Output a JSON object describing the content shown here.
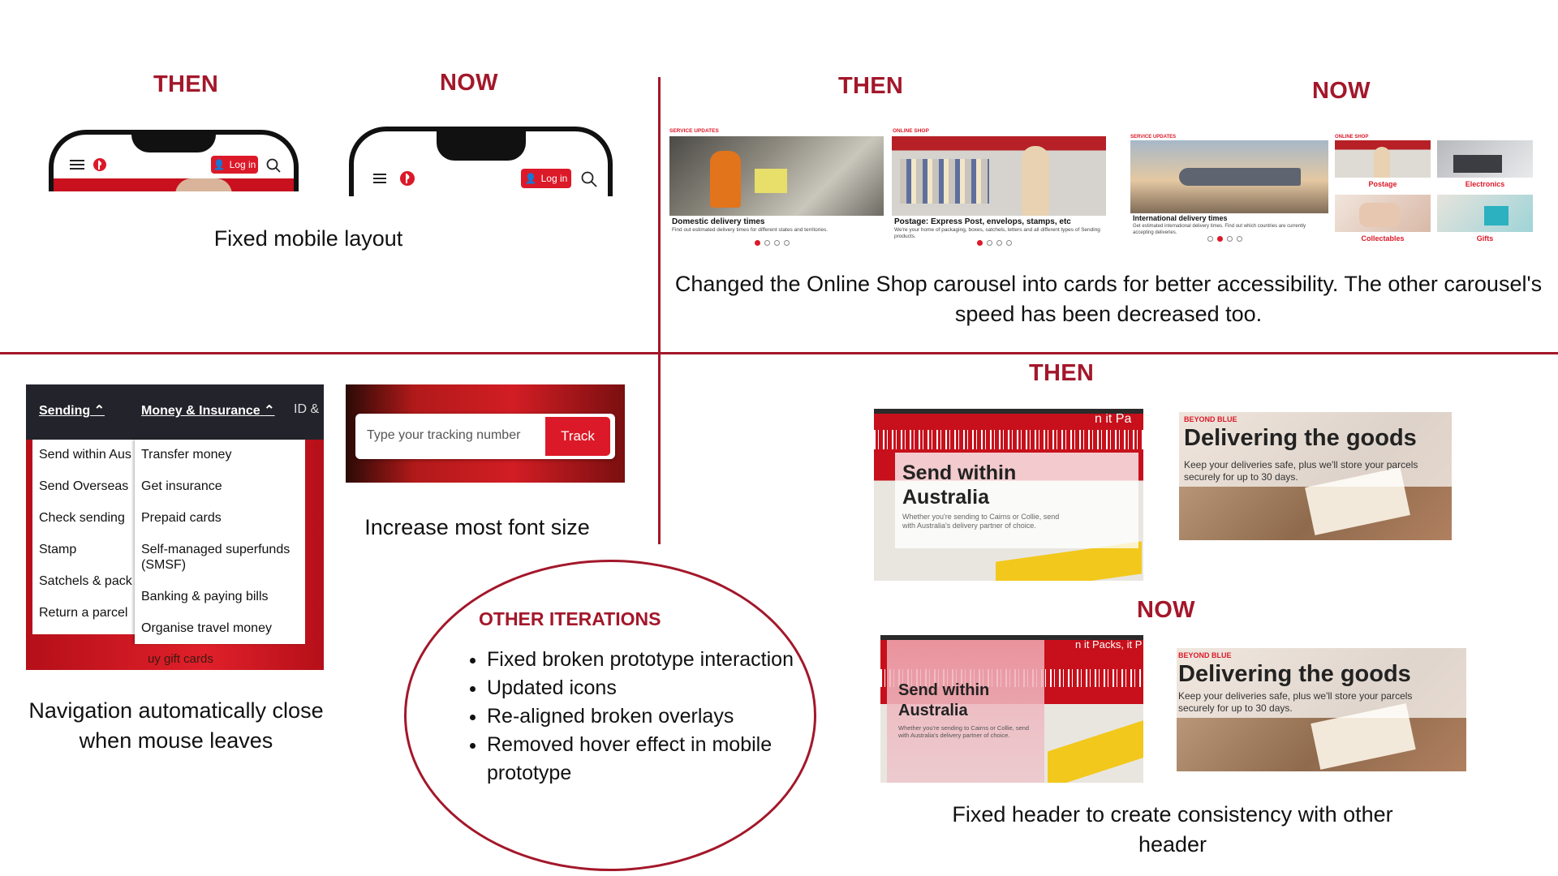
{
  "labels": {
    "then": "THEN",
    "now": "NOW"
  },
  "mobile": {
    "caption": "Fixed mobile layout",
    "login_label": "Log in"
  },
  "carousel": {
    "caption": "Changed the Online Shop carousel into cards for better accessibility. The other carousel's speed has been decreased too.",
    "then_slides": [
      {
        "tag": "SERVICE UPDATES",
        "title": "Domestic delivery times",
        "subtitle": "Find out estimated delivery times for different states and territories."
      },
      {
        "tag": "ONLINE SHOP",
        "title": "Postage: Express Post, envelops, stamps, etc",
        "subtitle": "We're your home of packaging, boxes, satchels, letters and all different types of Sending products."
      }
    ],
    "now_slide": {
      "tag": "SERVICE UPDATES",
      "title": "International delivery times",
      "subtitle": "Get estimated international delivery times. Find out which countries are currently accepting deliveries."
    },
    "now_shop_tag": "ONLINE SHOP",
    "now_cards": [
      "Postage",
      "Electronics",
      "Collectables",
      "Gifts"
    ]
  },
  "navigation": {
    "caption": "Navigation automatically close when mouse leaves",
    "top_items": [
      "Sending",
      "Money & Insurance",
      "ID &"
    ],
    "sending_items": [
      "Send within Aus",
      "Send Overseas",
      "Check sending",
      "Stamp",
      "Satchels & pack",
      "Return a parcel"
    ],
    "money_items": [
      "Transfer money",
      "Get insurance",
      "Prepaid cards",
      "Self-managed superfunds",
      "(SMSF)",
      "Banking & paying bills",
      "Organise travel money"
    ],
    "behind_text": "uy gift cards"
  },
  "tracking": {
    "caption": "Increase most font size",
    "placeholder": "Type your tracking number",
    "button": "Track"
  },
  "other": {
    "title": "OTHER ITERATIONS",
    "items": [
      "Fixed broken prototype interaction",
      "Updated icons",
      "Re-aligned broken overlays",
      "Removed hover effect in mobile prototype"
    ]
  },
  "overlays": {
    "caption": "Fixed header to create consistency with other header",
    "send_title": "Send within Australia",
    "send_sub": "Whether you're sending to Cairns or Collie, send with Australia's delivery partner of choice.",
    "blue_tag": "BEYOND BLUE",
    "blue_title": "Delivering the goods",
    "blue_sub": "Keep your deliveries safe, plus we'll store your parcels securely for up to 30 days.",
    "bg_text_then": "n it Pa",
    "bg_text_now": "n it Packs, it P"
  },
  "colors": {
    "accent": "#a3172a",
    "brand_red": "#dc1928",
    "nav_dark": "#23232b"
  }
}
